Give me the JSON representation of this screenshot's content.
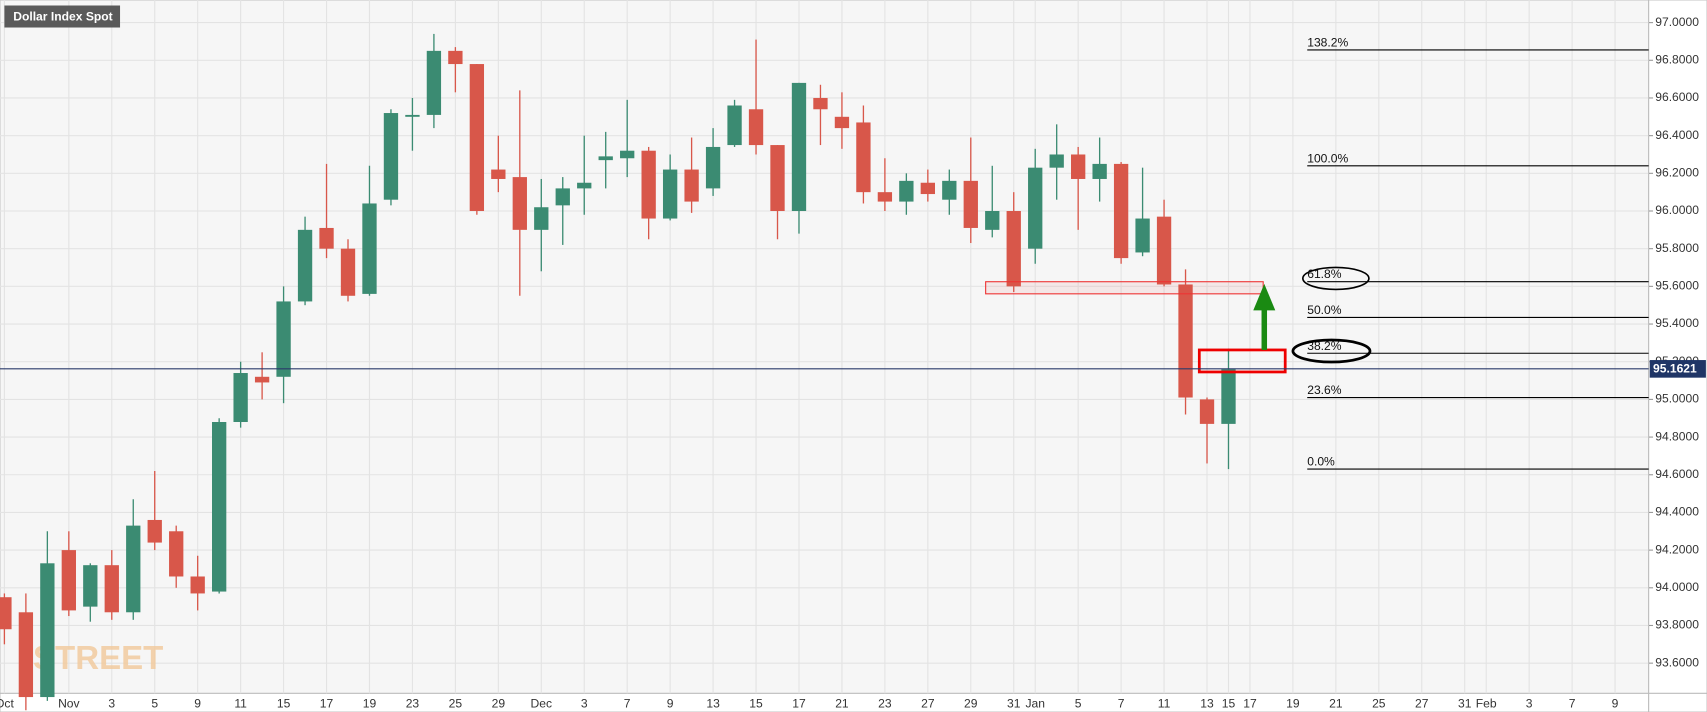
{
  "chart_data": {
    "type": "candlestick",
    "title": "Dollar Index Spot",
    "watermark": "STREET",
    "up_color": "#3b8b72",
    "down_color": "#d8574a",
    "grid": true,
    "categories": [
      "Oct",
      null,
      null,
      "Nov",
      null,
      "3",
      null,
      "5",
      null,
      "9",
      null,
      "11",
      null,
      "15",
      null,
      "17",
      null,
      "19",
      null,
      "23",
      null,
      "25",
      null,
      "29",
      null,
      "Dec",
      null,
      "3",
      null,
      "7",
      null,
      "9",
      null,
      "13",
      null,
      "15",
      null,
      "17",
      null,
      "21",
      null,
      "23",
      null,
      "27",
      null,
      "29",
      null,
      "31",
      "Jan",
      null,
      "5",
      null,
      "7",
      null,
      "11",
      null,
      "13",
      "15",
      "17",
      null,
      "19",
      null,
      "21",
      null,
      "25",
      null,
      "27",
      null,
      "31",
      "Feb",
      null,
      "3",
      null,
      "7",
      null,
      "9"
    ],
    "open": [
      93.95,
      93.87,
      93.42,
      94.2,
      93.9,
      94.12,
      93.87,
      94.36,
      94.3,
      94.06,
      93.98,
      94.88,
      95.12,
      95.12,
      95.52,
      95.91,
      95.8,
      95.56,
      96.06,
      96.5,
      96.51,
      96.85,
      96.78,
      96.22,
      96.18,
      95.9,
      96.03,
      96.12,
      96.27,
      96.28,
      96.32,
      95.96,
      96.22,
      96.12,
      96.35,
      96.54,
      96.35,
      96.0,
      96.6,
      96.5,
      96.47,
      96.1,
      96.05,
      96.15,
      96.06,
      96.16,
      95.9,
      96.0,
      95.8,
      96.23,
      96.3,
      96.17,
      96.25,
      95.78,
      95.97,
      95.61,
      95.0,
      94.87,
      null,
      null,
      null,
      null,
      null,
      null,
      null,
      null,
      null,
      null,
      null,
      null,
      null,
      null,
      null,
      null,
      null,
      null
    ],
    "high": [
      93.97,
      93.97,
      94.3,
      94.3,
      94.13,
      94.2,
      94.47,
      94.62,
      94.33,
      94.17,
      94.9,
      95.2,
      95.25,
      95.6,
      95.97,
      96.25,
      95.85,
      96.24,
      96.54,
      96.6,
      96.94,
      96.87,
      96.78,
      96.4,
      96.64,
      96.17,
      96.18,
      96.4,
      96.42,
      96.59,
      96.34,
      96.3,
      96.39,
      96.44,
      96.59,
      96.91,
      96.35,
      96.68,
      96.67,
      96.63,
      96.56,
      96.28,
      96.2,
      96.22,
      96.22,
      96.39,
      96.24,
      96.1,
      96.33,
      96.46,
      96.34,
      96.39,
      96.26,
      96.23,
      96.06,
      95.69,
      95.01,
      95.27,
      null,
      null,
      null,
      null,
      null,
      null,
      null,
      null,
      null,
      null,
      null,
      null,
      null,
      null,
      null,
      null,
      null,
      null
    ],
    "low": [
      93.7,
      93.35,
      93.4,
      93.85,
      93.82,
      93.83,
      93.83,
      94.2,
      94.0,
      93.88,
      93.97,
      94.85,
      95.0,
      94.98,
      95.5,
      95.75,
      95.52,
      95.55,
      96.03,
      96.32,
      96.44,
      96.63,
      95.98,
      96.1,
      95.55,
      95.68,
      95.82,
      95.98,
      96.12,
      96.18,
      95.85,
      95.95,
      95.99,
      96.08,
      96.34,
      96.3,
      95.85,
      95.88,
      96.35,
      96.33,
      96.04,
      96.0,
      95.98,
      96.05,
      95.98,
      95.83,
      95.86,
      95.57,
      95.72,
      96.06,
      95.9,
      96.05,
      95.72,
      95.76,
      95.6,
      94.92,
      94.66,
      94.63,
      null,
      null,
      null,
      null,
      null,
      null,
      null,
      null,
      null,
      null,
      null,
      null,
      null,
      null,
      null,
      null,
      null,
      null
    ],
    "close": [
      93.78,
      93.42,
      94.13,
      93.88,
      94.12,
      93.87,
      94.33,
      94.24,
      94.06,
      93.97,
      94.88,
      95.14,
      95.09,
      95.52,
      95.9,
      95.8,
      95.55,
      96.04,
      96.52,
      96.51,
      96.85,
      96.78,
      96.0,
      96.17,
      95.9,
      96.02,
      96.12,
      96.15,
      96.29,
      96.32,
      95.96,
      96.22,
      96.05,
      96.34,
      96.56,
      96.35,
      96.0,
      96.68,
      96.54,
      96.44,
      96.1,
      96.05,
      96.16,
      96.09,
      96.16,
      95.91,
      96.0,
      95.6,
      96.23,
      96.3,
      96.17,
      96.25,
      95.75,
      95.96,
      95.61,
      95.01,
      94.87,
      95.16,
      null,
      null,
      null,
      null,
      null,
      null,
      null,
      null,
      null,
      null,
      null,
      null,
      null,
      null,
      null,
      null,
      null,
      null
    ],
    "ylim": [
      93.44,
      97.12
    ],
    "yticks": [
      {
        "value": 93.6,
        "label": "93.6000"
      },
      {
        "value": 93.8,
        "label": "93.8000"
      },
      {
        "value": 94.0,
        "label": "94.0000"
      },
      {
        "value": 94.2,
        "label": "94.2000"
      },
      {
        "value": 94.4,
        "label": "94.4000"
      },
      {
        "value": 94.6,
        "label": "94.6000"
      },
      {
        "value": 94.8,
        "label": "94.8000"
      },
      {
        "value": 95.0,
        "label": "95.0000"
      },
      {
        "value": 95.2,
        "label": "95.2000"
      },
      {
        "value": 95.4,
        "label": "95.4000"
      },
      {
        "value": 95.6,
        "label": "95.6000"
      },
      {
        "value": 95.8,
        "label": "95.8000"
      },
      {
        "value": 96.0,
        "label": "96.0000"
      },
      {
        "value": 96.2,
        "label": "96.2000"
      },
      {
        "value": 96.4,
        "label": "96.4000"
      },
      {
        "value": 96.6,
        "label": "96.6000"
      },
      {
        "value": 96.8,
        "label": "96.8000"
      },
      {
        "value": 97.0,
        "label": "97.0000"
      }
    ],
    "last_price": 95.1621,
    "fib_levels": [
      {
        "label": "138.2%",
        "value": 96.855
      },
      {
        "label": "100.0%",
        "value": 96.24
      },
      {
        "label": "61.8%",
        "value": 95.625
      },
      {
        "label": "50.0%",
        "value": 95.435
      },
      {
        "label": "38.2%",
        "value": 95.245
      },
      {
        "label": "23.6%",
        "value": 95.01
      },
      {
        "label": "0.0%",
        "value": 94.63
      }
    ]
  }
}
